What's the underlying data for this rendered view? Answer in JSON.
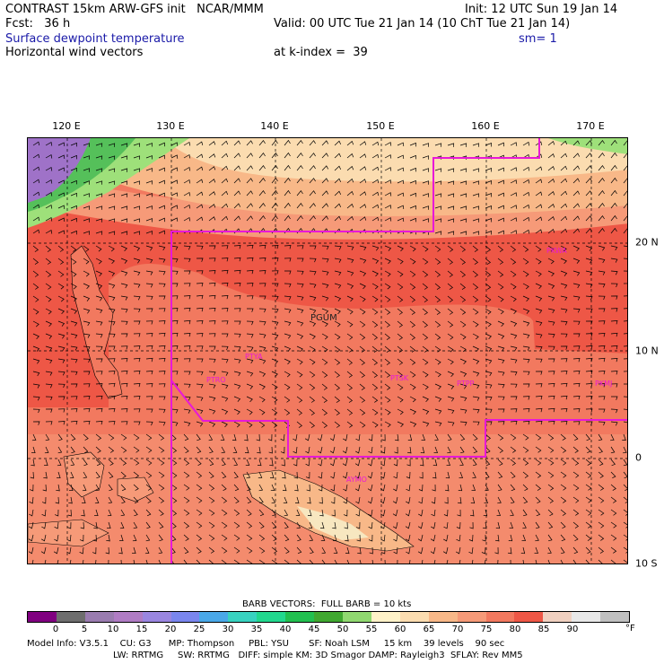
{
  "header": {
    "line1_left": "CONTRAST 15km ARW-GFS init   NCAR/MMM",
    "line1_right": "Init: 12 UTC Sun 19 Jan 14",
    "fcst_label": "Fcst:   36 h",
    "valid": "Valid: 00 UTC Tue 21 Jan 14 (10 ChT Tue 21 Jan 14)",
    "field_name": "Surface dewpoint temperature",
    "smoothing": "sm= 1",
    "vectors_label": "Horizontal wind vectors",
    "k_index": "at k-index =  39"
  },
  "map": {
    "lon_labels": [
      "120 E",
      "130 E",
      "140 E",
      "150 E",
      "160 E",
      "170 E"
    ],
    "lat_labels": [
      "20 N",
      "10 N",
      "0",
      "10 S"
    ],
    "stations": [
      "PGUM",
      "PTYA",
      "PTRO",
      "PTSK",
      "PTPP",
      "PKMJ",
      "PKWA",
      "AYMO"
    ],
    "fill_colors": {
      "purple": "#9f72c8",
      "green_dark": "#55c05a",
      "green_light": "#9ee07a",
      "peach_light": "#fbdcb0",
      "peach": "#f8b888",
      "orange": "#f69a78",
      "salmon": "#f2795f",
      "red": "#ee5746",
      "land_cream": "#f7e7c0",
      "boundary": "#e818d8"
    }
  },
  "legend": {
    "barb_title": "BARB VECTORS:  FULL BARB = 10 kts",
    "unit": "°F",
    "ticks": [
      "0",
      "5",
      "10",
      "15",
      "20",
      "25",
      "30",
      "35",
      "40",
      "45",
      "50",
      "55",
      "60",
      "65",
      "70",
      "75",
      "80",
      "85",
      "90"
    ],
    "colors": [
      "#800080",
      "#6e6e6e",
      "#9a7cb0",
      "#b07cc4",
      "#9a86e0",
      "#7a86ee",
      "#4aa8e8",
      "#38d2c0",
      "#22d88e",
      "#22c050",
      "#40a830",
      "#90d870",
      "#fff2c8",
      "#fbdcb0",
      "#f8b888",
      "#f69a78",
      "#f2795f",
      "#ee5746",
      "#f0d0c0",
      "#e8e8e8",
      "#c0c0c0"
    ]
  },
  "model_info": {
    "line1": "Model Info: V3.5.1    CU: G3      MP: Thompson     PBL: YSU       SF: Noah LSM     15 km    39 levels    90 sec",
    "line2": "LW: RRTMG     SW: RRTMG   DIFF: simple KM: 3D Smagor DAMP: Rayleigh3  SFLAY: Rev MM5"
  }
}
